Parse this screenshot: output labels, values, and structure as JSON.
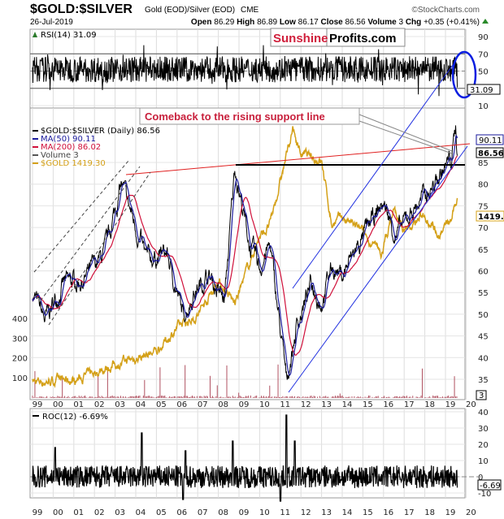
{
  "header": {
    "symbol": "$GOLD:$SILVER",
    "description": "Gold (EOD)/Silver (EOD)",
    "exchange": "CME",
    "brand": "©StockCharts.com",
    "date": "26-Jul-2019",
    "open_label": "Open",
    "open": "86.29",
    "high_label": "High",
    "high": "86.89",
    "low_label": "Low",
    "low": "86.17",
    "close_label": "Close",
    "close": "86.56",
    "volume_label": "Volume",
    "volume": "3",
    "chg_label": "Chg",
    "chg": "+0.35 (+0.41%)"
  },
  "watermark": {
    "part1": "Sunshine",
    "part2": "Profits.com"
  },
  "annotation": "Comeback to the rising support line",
  "colors": {
    "ratio": "#000000",
    "ma50": "#1a1a9c",
    "ma200": "#d0103a",
    "gold": "#d4a017",
    "volume": "#b05060",
    "channel": "#2030e0",
    "resistance": "#e02020",
    "annotation": "#c8203c"
  },
  "chart_data": [
    {
      "type": "line",
      "name": "rsi-panel",
      "legend": "RSI(14) 31.09",
      "last_value": "31.09",
      "yticks": [
        "90",
        "70",
        "50",
        "10"
      ],
      "ylim": [
        10,
        90
      ],
      "levels": [
        70,
        50,
        30
      ]
    },
    {
      "type": "line",
      "name": "price-panel",
      "legend": [
        {
          "label": "$GOLD:$SILVER (Daily) 86.56",
          "color": "#000000"
        },
        {
          "label": "MA(50) 90.11",
          "color": "#1a1a9c"
        },
        {
          "label": "MA(200) 86.02",
          "color": "#d0103a"
        },
        {
          "label": "Volume 3",
          "color": "#555555"
        },
        {
          "label": "$GOLD 1419.30",
          "color": "#d4a017"
        }
      ],
      "right_labels": {
        "ma50": "90.11",
        "close": "86.56",
        "gold": "1419.3",
        "volume": "3"
      },
      "yticks_right": [
        "85",
        "80",
        "75",
        "70",
        "65",
        "60",
        "55",
        "50",
        "45",
        "40",
        "35"
      ],
      "yticks_left": [
        "400",
        "300",
        "200",
        "100"
      ],
      "ylim": [
        35,
        90
      ],
      "xticks": [
        "99",
        "00",
        "01",
        "02",
        "03",
        "04",
        "05",
        "06",
        "07",
        "08",
        "09",
        "10",
        "11",
        "12",
        "13",
        "14",
        "15",
        "16",
        "17",
        "18",
        "19",
        "20"
      ],
      "ratio_series": {
        "x": [
          1999.0,
          1999.6,
          2000.5,
          2001.5,
          2002.5,
          2003.3,
          2004.0,
          2004.5,
          2005.5,
          2006.3,
          2006.8,
          2007.5,
          2008.3,
          2008.8,
          2009.5,
          2010.0,
          2010.5,
          2011.3,
          2011.8,
          2012.5,
          2013.0,
          2013.5,
          2014.0,
          2014.8,
          2015.5,
          2016.0,
          2016.6,
          2017.5,
          2018.5,
          2019.0,
          2019.3,
          2019.5,
          2019.57
        ],
        "y": [
          55,
          48.5,
          57,
          58,
          64,
          80,
          70,
          62.5,
          64,
          49.5,
          55,
          59,
          53,
          84,
          66,
          60.7,
          66,
          34.5,
          47.5,
          57,
          53,
          61,
          59,
          66,
          72,
          75.6,
          68,
          74.7,
          80,
          84,
          86,
          93.5,
          86.56
        ]
      },
      "gold_series": {
        "x": [
          1999.0,
          2001.0,
          2002.0,
          2003.0,
          2004.0,
          2005.0,
          2006.0,
          2007.0,
          2008.0,
          2008.8,
          2009.9,
          2010.5,
          2011.6,
          2012.0,
          2013.0,
          2013.5,
          2014.0,
          2015.0,
          2015.9,
          2016.5,
          2017.0,
          2018.0,
          2018.7,
          2019.3,
          2019.57
        ],
        "y": [
          260,
          270,
          320,
          370,
          410,
          450,
          600,
          680,
          900,
          750,
          1150,
          1250,
          1850,
          1700,
          1650,
          1250,
          1300,
          1200,
          1060,
          1350,
          1200,
          1320,
          1200,
          1280,
          1419.3
        ]
      },
      "resistance_level": 85
    },
    {
      "type": "line",
      "name": "roc-panel",
      "legend": "ROC(12) -6.69%",
      "last_value": "-6.69",
      "yticks": [
        "40",
        "30",
        "20",
        "10",
        "0",
        "-10"
      ],
      "ylim": [
        -15,
        40
      ],
      "spikes": [
        {
          "x": 2000.1,
          "y": 18
        },
        {
          "x": 2004.3,
          "y": 27
        },
        {
          "x": 2006.4,
          "y": 16
        },
        {
          "x": 2008.7,
          "y": 22
        },
        {
          "x": 2011.3,
          "y": 38
        },
        {
          "x": 2011.7,
          "y": 22
        },
        {
          "x": 2006.3,
          "y": -14
        },
        {
          "x": 2011.0,
          "y": -15
        }
      ]
    }
  ]
}
